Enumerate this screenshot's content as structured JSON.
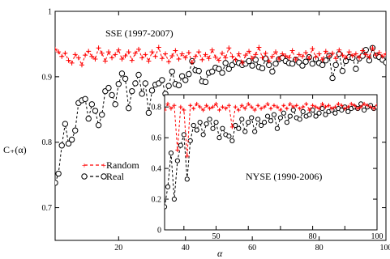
{
  "chart_data": [
    {
      "panel": "main",
      "type": "line",
      "annotation": "SSE (1997-2007)",
      "xlabel": "α",
      "ylabel": "C₊(α)",
      "xlim": [
        1,
        100
      ],
      "ylim": [
        0.65,
        1.0
      ],
      "xticks": [
        20,
        40,
        60,
        80,
        100
      ],
      "xtick_labels": [
        "20",
        "40",
        "60",
        "80",
        "100"
      ],
      "yticks": [
        0.7,
        0.8,
        0.9,
        1.0
      ],
      "ytick_labels": [
        "0.7",
        "0.8",
        "0.9",
        "1"
      ],
      "legend": {
        "position": "center-left",
        "entries": [
          "Random",
          "Real"
        ]
      },
      "series": [
        {
          "name": "Random",
          "color": "#ff0000",
          "marker": "plus",
          "line": "dashed",
          "x": [
            1,
            2,
            3,
            4,
            5,
            6,
            7,
            8,
            9,
            10,
            11,
            12,
            13,
            14,
            15,
            16,
            17,
            18,
            19,
            20,
            21,
            22,
            23,
            24,
            25,
            26,
            27,
            28,
            29,
            30,
            31,
            32,
            33,
            34,
            35,
            36,
            37,
            38,
            39,
            40,
            41,
            42,
            43,
            44,
            45,
            46,
            47,
            48,
            49,
            50,
            51,
            52,
            53,
            54,
            55,
            56,
            57,
            58,
            59,
            60,
            61,
            62,
            63,
            64,
            65,
            66,
            67,
            68,
            69,
            70,
            71,
            72,
            73,
            74,
            75,
            76,
            77,
            78,
            79,
            80,
            81,
            82,
            83,
            84,
            85,
            86,
            87,
            88,
            89,
            90,
            91,
            92,
            93,
            94,
            95,
            96,
            97,
            98,
            99,
            100
          ],
          "y": [
            0.942,
            0.938,
            0.931,
            0.936,
            0.925,
            0.921,
            0.934,
            0.929,
            0.918,
            0.933,
            0.939,
            0.931,
            0.927,
            0.944,
            0.936,
            0.924,
            0.938,
            0.929,
            0.934,
            0.941,
            0.927,
            0.932,
            0.938,
            0.925,
            0.936,
            0.942,
            0.929,
            0.934,
            0.924,
            0.938,
            0.931,
            0.945,
            0.928,
            0.935,
            0.923,
            0.932,
            0.94,
            0.927,
            0.935,
            0.929,
            0.937,
            0.922,
            0.931,
            0.938,
            0.926,
            0.934,
            0.928,
            0.941,
            0.93,
            0.925,
            0.936,
            0.929,
            0.944,
            0.931,
            0.926,
            0.935,
            0.921,
            0.933,
            0.939,
            0.928,
            0.934,
            0.945,
            0.929,
            0.936,
            0.924,
            0.931,
            0.938,
            0.927,
            0.935,
            0.932,
            0.929,
            0.94,
            0.926,
            0.934,
            0.931,
            0.937,
            0.928,
            0.943,
            0.93,
            0.935,
            0.926,
            0.939,
            0.931,
            0.936,
            0.928,
            0.941,
            0.933,
            0.929,
            0.938,
            0.932,
            0.935,
            0.929,
            0.94,
            0.934,
            0.93,
            0.944,
            0.933,
            0.937,
            0.931,
            0.935
          ]
        },
        {
          "name": "Real",
          "color": "#000000",
          "marker": "circle",
          "line": "dashed",
          "x": [
            1,
            2,
            3,
            4,
            5,
            6,
            7,
            8,
            9,
            10,
            11,
            12,
            13,
            14,
            15,
            16,
            17,
            18,
            19,
            20,
            21,
            22,
            23,
            24,
            25,
            26,
            27,
            28,
            29,
            30,
            31,
            32,
            33,
            34,
            35,
            36,
            37,
            38,
            39,
            40,
            41,
            42,
            43,
            44,
            45,
            46,
            47,
            48,
            49,
            50,
            51,
            52,
            53,
            54,
            55,
            56,
            57,
            58,
            59,
            60,
            61,
            62,
            63,
            64,
            65,
            66,
            67,
            68,
            69,
            70,
            71,
            72,
            73,
            74,
            75,
            76,
            77,
            78,
            79,
            80,
            81,
            82,
            83,
            84,
            85,
            86,
            87,
            88,
            89,
            90,
            91,
            92,
            93,
            94,
            95,
            96,
            97,
            98,
            99,
            100
          ],
          "y": [
            0.738,
            0.752,
            0.795,
            0.828,
            0.798,
            0.804,
            0.818,
            0.86,
            0.864,
            0.866,
            0.836,
            0.858,
            0.848,
            0.826,
            0.842,
            0.878,
            0.883,
            0.872,
            0.858,
            0.889,
            0.905,
            0.897,
            0.852,
            0.878,
            0.89,
            0.903,
            0.874,
            0.89,
            0.845,
            0.879,
            0.888,
            0.89,
            0.895,
            0.874,
            0.886,
            0.908,
            0.889,
            0.887,
            0.901,
            0.895,
            0.904,
            0.924,
            0.91,
            0.909,
            0.893,
            0.892,
            0.906,
            0.908,
            0.914,
            0.912,
            0.906,
            0.921,
            0.912,
            0.918,
            0.923,
            0.921,
            0.918,
            0.92,
            0.924,
            0.917,
            0.926,
            0.915,
            0.913,
            0.928,
            0.918,
            0.908,
            0.92,
            0.927,
            0.929,
            0.924,
            0.921,
            0.92,
            0.926,
            0.922,
            0.917,
            0.923,
            0.93,
            0.92,
            0.927,
            0.921,
            0.918,
            0.925,
            0.932,
            0.898,
            0.918,
            0.935,
            0.909,
            0.924,
            0.93,
            0.929,
            0.912,
            0.928,
            0.932,
            0.941,
            0.925,
            0.944,
            0.932,
            0.93,
            0.926,
            0.922
          ]
        }
      ]
    },
    {
      "panel": "inset",
      "type": "line",
      "annotation": "NYSE (1990-2006)",
      "xlim": [
        34,
        100
      ],
      "ylim": [
        0,
        0.88
      ],
      "xticks": [
        40,
        50,
        60,
        70,
        80,
        90,
        100
      ],
      "xtick_labels": [
        "",
        "50",
        "",
        "",
        "80",
        "",
        "100"
      ],
      "yticks": [
        0,
        0.2,
        0.4,
        0.6,
        0.8
      ],
      "ytick_labels": [
        "0",
        "0.2",
        "0.4",
        "0.6",
        "0.8"
      ],
      "series": [
        {
          "name": "Random",
          "color": "#ff0000",
          "marker": "plus",
          "line": "dashed",
          "x": [
            34,
            35,
            36,
            37,
            38,
            39,
            40,
            41,
            42,
            43,
            44,
            45,
            46,
            47,
            48,
            49,
            50,
            51,
            52,
            53,
            54,
            55,
            56,
            57,
            58,
            59,
            60,
            61,
            62,
            63,
            64,
            65,
            66,
            67,
            68,
            69,
            70,
            71,
            72,
            73,
            74,
            75,
            76,
            77,
            78,
            79,
            80,
            81,
            82,
            83,
            84,
            85,
            86,
            87,
            88,
            89,
            90,
            91,
            92,
            93,
            94,
            95,
            96,
            97,
            98,
            99,
            100
          ],
          "y": [
            0.78,
            0.82,
            0.79,
            0.81,
            0.52,
            0.8,
            0.78,
            0.48,
            0.81,
            0.79,
            0.82,
            0.8,
            0.78,
            0.81,
            0.79,
            0.8,
            0.82,
            0.78,
            0.8,
            0.79,
            0.81,
            0.67,
            0.8,
            0.78,
            0.81,
            0.79,
            0.82,
            0.8,
            0.78,
            0.81,
            0.79,
            0.8,
            0.82,
            0.79,
            0.81,
            0.8,
            0.78,
            0.81,
            0.79,
            0.82,
            0.8,
            0.81,
            0.79,
            0.8,
            0.82,
            0.78,
            0.81,
            0.8,
            0.79,
            0.82,
            0.8,
            0.81,
            0.79,
            0.8,
            0.82,
            0.81,
            0.79,
            0.8,
            0.82,
            0.81,
            0.79,
            0.8,
            0.82,
            0.81,
            0.8,
            0.79,
            0.81
          ]
        },
        {
          "name": "Real",
          "color": "#000000",
          "marker": "circle",
          "line": "dashed",
          "x": [
            34,
            35,
            36,
            37,
            38,
            39,
            40,
            41,
            42,
            43,
            44,
            45,
            46,
            47,
            48,
            49,
            50,
            51,
            52,
            53,
            54,
            55,
            56,
            57,
            58,
            59,
            60,
            61,
            62,
            63,
            64,
            65,
            66,
            67,
            68,
            69,
            70,
            71,
            72,
            73,
            74,
            75,
            76,
            77,
            78,
            79,
            80,
            81,
            82,
            83,
            84,
            85,
            86,
            87,
            88,
            89,
            90,
            91,
            92,
            93,
            94,
            95,
            96,
            97,
            98,
            99,
            100
          ],
          "y": [
            0.15,
            0.28,
            0.5,
            0.2,
            0.45,
            0.55,
            0.62,
            0.33,
            0.58,
            0.68,
            0.65,
            0.7,
            0.62,
            0.69,
            0.72,
            0.66,
            0.7,
            0.6,
            0.66,
            0.62,
            0.61,
            0.58,
            0.68,
            0.66,
            0.72,
            0.64,
            0.7,
            0.73,
            0.64,
            0.72,
            0.68,
            0.7,
            0.74,
            0.71,
            0.75,
            0.66,
            0.73,
            0.76,
            0.7,
            0.74,
            0.78,
            0.73,
            0.72,
            0.77,
            0.74,
            0.75,
            0.78,
            0.74,
            0.76,
            0.79,
            0.75,
            0.77,
            0.78,
            0.76,
            0.79,
            0.78,
            0.8,
            0.77,
            0.79,
            0.8,
            0.79,
            0.82,
            0.78,
            0.8,
            0.81,
            0.79,
            0.8
          ]
        }
      ]
    }
  ]
}
